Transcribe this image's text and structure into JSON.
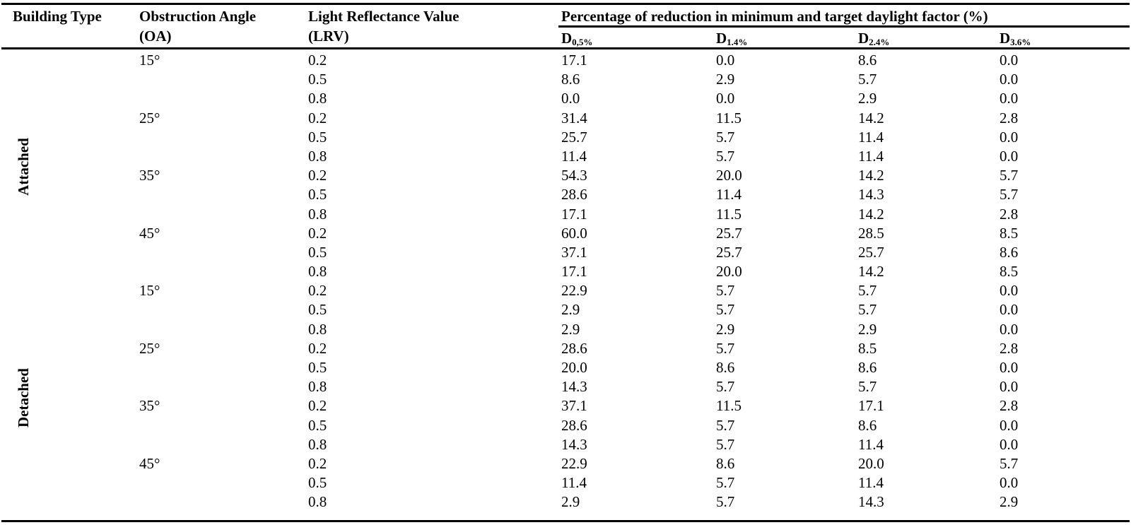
{
  "table": {
    "headers": {
      "building_type": "Building Type",
      "obstruction_angle_line1": "Obstruction Angle",
      "obstruction_angle_line2": "(OA)",
      "lrv_line1": "Light Reflectance Value",
      "lrv_line2": "(LRV)",
      "group_header": "Percentage of reduction in minimum and target daylight factor (%)",
      "sub_columns": [
        {
          "base": "D",
          "subscript": "0,5%"
        },
        {
          "base": "D",
          "subscript": "1.4%"
        },
        {
          "base": "D",
          "subscript": "2.4%"
        },
        {
          "base": "D",
          "subscript": "3.6%"
        }
      ]
    },
    "groups": [
      {
        "label": "Attached"
      },
      {
        "label": "Detached"
      }
    ],
    "rows": [
      {
        "angle": "15°",
        "lrv": "0.2",
        "values": [
          "17.1",
          "0.0",
          "8.6",
          "0.0"
        ]
      },
      {
        "angle": "",
        "lrv": "0.5",
        "values": [
          "8.6",
          "2.9",
          "5.7",
          "0.0"
        ]
      },
      {
        "angle": "",
        "lrv": "0.8",
        "values": [
          "0.0",
          "0.0",
          "2.9",
          "0.0"
        ]
      },
      {
        "angle": "25°",
        "lrv": "0.2",
        "values": [
          "31.4",
          "11.5",
          "14.2",
          "2.8"
        ]
      },
      {
        "angle": "",
        "lrv": "0.5",
        "values": [
          "25.7",
          "5.7",
          "11.4",
          "0.0"
        ]
      },
      {
        "angle": "",
        "lrv": "0.8",
        "values": [
          "11.4",
          "5.7",
          "11.4",
          "0.0"
        ]
      },
      {
        "angle": "35°",
        "lrv": "0.2",
        "values": [
          "54.3",
          "20.0",
          "14.2",
          "5.7"
        ]
      },
      {
        "angle": "",
        "lrv": "0.5",
        "values": [
          "28.6",
          "11.4",
          "14.3",
          "5.7"
        ]
      },
      {
        "angle": "",
        "lrv": "0.8",
        "values": [
          "17.1",
          "11.5",
          "14.2",
          "2.8"
        ]
      },
      {
        "angle": "45°",
        "lrv": "0.2",
        "values": [
          "60.0",
          "25.7",
          "28.5",
          "8.5"
        ]
      },
      {
        "angle": "",
        "lrv": "0.5",
        "values": [
          "37.1",
          "25.7",
          "25.7",
          "8.6"
        ]
      },
      {
        "angle": "",
        "lrv": "0.8",
        "values": [
          "17.1",
          "20.0",
          "14.2",
          "8.5"
        ]
      },
      {
        "angle": "15°",
        "lrv": "0.2",
        "values": [
          "22.9",
          "5.7",
          "5.7",
          "0.0"
        ]
      },
      {
        "angle": "",
        "lrv": "0.5",
        "values": [
          "2.9",
          "5.7",
          "5.7",
          "0.0"
        ]
      },
      {
        "angle": "",
        "lrv": "0.8",
        "values": [
          "2.9",
          "2.9",
          "2.9",
          "0.0"
        ]
      },
      {
        "angle": "25°",
        "lrv": "0.2",
        "values": [
          "28.6",
          "5.7",
          "8.5",
          "2.8"
        ]
      },
      {
        "angle": "",
        "lrv": "0.5",
        "values": [
          "20.0",
          "8.6",
          "8.6",
          "0.0"
        ]
      },
      {
        "angle": "",
        "lrv": "0.8",
        "values": [
          "14.3",
          "5.7",
          "5.7",
          "0.0"
        ]
      },
      {
        "angle": "35°",
        "lrv": "0.2",
        "values": [
          "37.1",
          "11.5",
          "17.1",
          "2.8"
        ]
      },
      {
        "angle": "",
        "lrv": "0.5",
        "values": [
          "28.6",
          "5.7",
          "8.6",
          "0.0"
        ]
      },
      {
        "angle": "",
        "lrv": "0.8",
        "values": [
          "14.3",
          "5.7",
          "11.4",
          "0.0"
        ]
      },
      {
        "angle": "45°",
        "lrv": "0.2",
        "values": [
          "22.9",
          "8.6",
          "20.0",
          "5.7"
        ]
      },
      {
        "angle": "",
        "lrv": "0.5",
        "values": [
          "11.4",
          "5.7",
          "11.4",
          "0.0"
        ]
      },
      {
        "angle": "",
        "lrv": "0.8",
        "values": [
          "2.9",
          "5.7",
          "14.3",
          "2.9"
        ]
      }
    ]
  }
}
